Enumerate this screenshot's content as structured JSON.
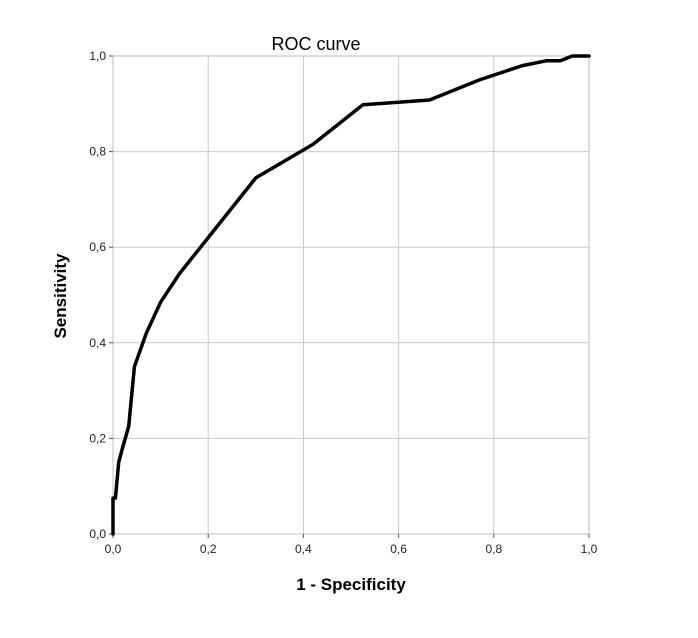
{
  "chart_data": {
    "type": "line",
    "title": "ROC curve",
    "xlabel": "1 - Specificity",
    "ylabel": "Sensitivity",
    "xlim": [
      0,
      1
    ],
    "ylim": [
      0,
      1
    ],
    "x_ticks": [
      "0,0",
      "0,2",
      "0,4",
      "0,6",
      "0,8",
      "1,0"
    ],
    "y_ticks": [
      "0,0",
      "0,2",
      "0,4",
      "0,6",
      "0,8",
      "1,0"
    ],
    "grid": true,
    "series": [
      {
        "color": "#000000",
        "x": [
          0.0,
          0.0,
          0.005,
          0.012,
          0.02,
          0.033,
          0.045,
          0.07,
          0.1,
          0.14,
          0.2,
          0.3,
          0.42,
          0.525,
          0.665,
          0.77,
          0.86,
          0.91,
          0.94,
          0.965,
          1.0
        ],
        "y": [
          0.0,
          0.075,
          0.075,
          0.15,
          0.18,
          0.225,
          0.35,
          0.42,
          0.485,
          0.545,
          0.62,
          0.745,
          0.815,
          0.898,
          0.908,
          0.95,
          0.98,
          0.99,
          0.99,
          1.0,
          1.0
        ]
      }
    ]
  }
}
